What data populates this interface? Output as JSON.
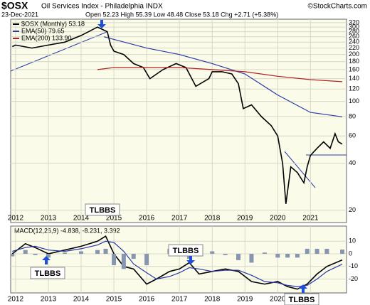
{
  "chart_data": [
    {
      "type": "line",
      "title": "$OSX",
      "subtitle": "Oil Services Index - Philadelphia INDX",
      "credit": "©StockCharts.com",
      "date": "23-Dec-2021",
      "quote": "Open 52.23 High 55.39 Low 48.48 Close 53.18 Chg +2.71 (+5.38%)",
      "log_scale": true,
      "grid": true,
      "legend": "top-left",
      "xlim": [
        2011.85,
        2022.1
      ],
      "xticks": [
        2012,
        2013,
        2014,
        2015,
        2016,
        2017,
        2018,
        2019,
        2020,
        2021
      ],
      "ylim": [
        16.7,
        337
      ],
      "yticks": [
        320,
        300,
        280,
        260,
        240,
        220,
        200,
        180,
        160,
        140,
        120,
        100,
        80,
        60,
        40,
        20
      ],
      "annotations": [
        "TLBBS"
      ],
      "series": [
        {
          "name": "$OSX (Monthly) 53.18",
          "color": "#000000",
          "x": [
            2011.9,
            2012.0,
            2012.5,
            2013.0,
            2013.5,
            2014.0,
            2014.5,
            2014.8,
            2014.9,
            2015.0,
            2015.3,
            2015.6,
            2015.9,
            2016.1,
            2016.5,
            2016.9,
            2017.2,
            2017.5,
            2017.9,
            2018.0,
            2018.3,
            2018.6,
            2018.8,
            2018.95,
            2019.2,
            2019.5,
            2019.8,
            2020.0,
            2020.15,
            2020.25,
            2020.4,
            2020.6,
            2020.8,
            2020.9,
            2021.0,
            2021.2,
            2021.4,
            2021.6,
            2021.75,
            2021.85,
            2021.97
          ],
          "values": [
            225,
            230,
            220,
            230,
            240,
            265,
            300,
            280,
            230,
            210,
            200,
            175,
            165,
            140,
            160,
            175,
            165,
            125,
            140,
            155,
            155,
            150,
            130,
            90,
            95,
            80,
            70,
            60,
            40,
            22,
            38,
            35,
            30,
            38,
            45,
            50,
            55,
            50,
            62,
            55,
            53.18
          ]
        },
        {
          "name": "EMA(50) 79.65",
          "color": "#2a3aa8",
          "x": [
            2014.7,
            2015.0,
            2016.0,
            2017.0,
            2018.0,
            2019.0,
            2020.0,
            2021.0,
            2021.97
          ],
          "values": [
            260,
            250,
            220,
            200,
            175,
            150,
            110,
            85,
            79.65
          ]
        },
        {
          "name": "EMA(200) 133.90",
          "color": "#b22222",
          "x": [
            2014.5,
            2015.0,
            2016.0,
            2017.0,
            2018.0,
            2019.0,
            2020.0,
            2021.0,
            2021.97
          ],
          "values": [
            160,
            165,
            165,
            165,
            160,
            155,
            145,
            138,
            133.9
          ]
        }
      ]
    },
    {
      "type": "line",
      "title": "MACD(12,26,9) -4.838, -8.231, 3.392",
      "xlim": [
        2011.85,
        2022.1
      ],
      "xticks": [
        2012,
        2013,
        2014,
        2015,
        2016,
        2017,
        2018,
        2019,
        2020,
        2021
      ],
      "ylim": [
        -31,
        22
      ],
      "yticks": [
        10,
        0,
        -10,
        -20
      ],
      "grid": true,
      "annotations": [
        "TLBBS",
        "TLBBS",
        "TLBBS"
      ],
      "x": [
        2011.9,
        2012.3,
        2012.6,
        2013.0,
        2013.5,
        2014.0,
        2014.5,
        2014.75,
        2015.0,
        2015.3,
        2015.6,
        2016.0,
        2016.3,
        2016.7,
        2017.0,
        2017.3,
        2017.6,
        2018.0,
        2018.4,
        2018.8,
        2019.2,
        2019.6,
        2020.0,
        2020.3,
        2020.6,
        2020.9,
        2021.2,
        2021.5,
        2021.97
      ],
      "series": [
        {
          "name": "MACD",
          "color": "#000000",
          "kind": "line",
          "values": [
            0,
            8,
            5,
            0,
            3,
            6,
            10,
            14,
            0,
            -10,
            -12,
            -24,
            -20,
            -14,
            -12,
            -7,
            -16,
            -14,
            -12,
            -14,
            -22,
            -24,
            -22,
            -26,
            -28,
            -24,
            -16,
            -10,
            -4.838
          ]
        },
        {
          "name": "Signal",
          "color": "#2a3aa8",
          "kind": "line",
          "values": [
            2,
            5,
            6,
            3,
            2,
            4,
            7,
            10,
            9,
            2,
            -8,
            -15,
            -20,
            -18,
            -15,
            -11,
            -12,
            -14,
            -13,
            -13,
            -17,
            -22,
            -23,
            -25,
            -26,
            -25,
            -20,
            -14,
            -8.231
          ]
        },
        {
          "name": "Histogram",
          "color": "#8796b0",
          "kind": "bar",
          "values": [
            -2,
            3,
            -1,
            -3,
            1,
            2,
            3,
            4,
            -9,
            -12,
            -4,
            -9,
            0,
            4,
            3,
            -4,
            -2,
            2,
            -1,
            -5,
            -7,
            1,
            -3,
            -3,
            -3,
            4,
            4,
            4,
            3.392
          ]
        }
      ]
    }
  ]
}
